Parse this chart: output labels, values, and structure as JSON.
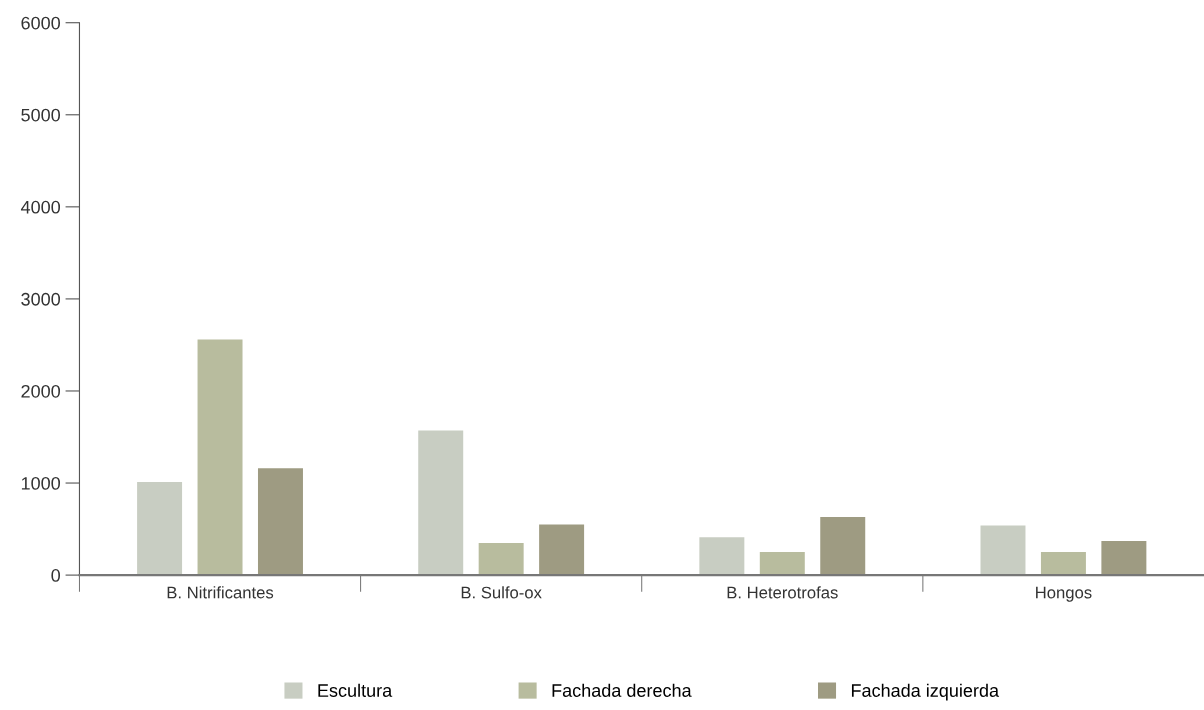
{
  "chart_data": {
    "type": "bar",
    "categories": [
      "B. Nitrificantes",
      "B. Sulfo-ox",
      "B. Heterotrofas",
      "Hongos"
    ],
    "series": [
      {
        "name": "Escultura",
        "color": "#c8cdc2",
        "values": [
          1010,
          1570,
          410,
          540
        ]
      },
      {
        "name": "Fachada derecha",
        "color": "#b8bc9e",
        "values": [
          2560,
          350,
          250,
          250
        ]
      },
      {
        "name": "Fachada izquierda",
        "color": "#9e9b82",
        "values": [
          1160,
          550,
          630,
          370
        ]
      }
    ],
    "ylim": [
      0,
      6000
    ],
    "yticks": [
      0,
      1000,
      2000,
      3000,
      4000,
      5000,
      6000
    ],
    "grid": false,
    "legend": "bottom"
  }
}
